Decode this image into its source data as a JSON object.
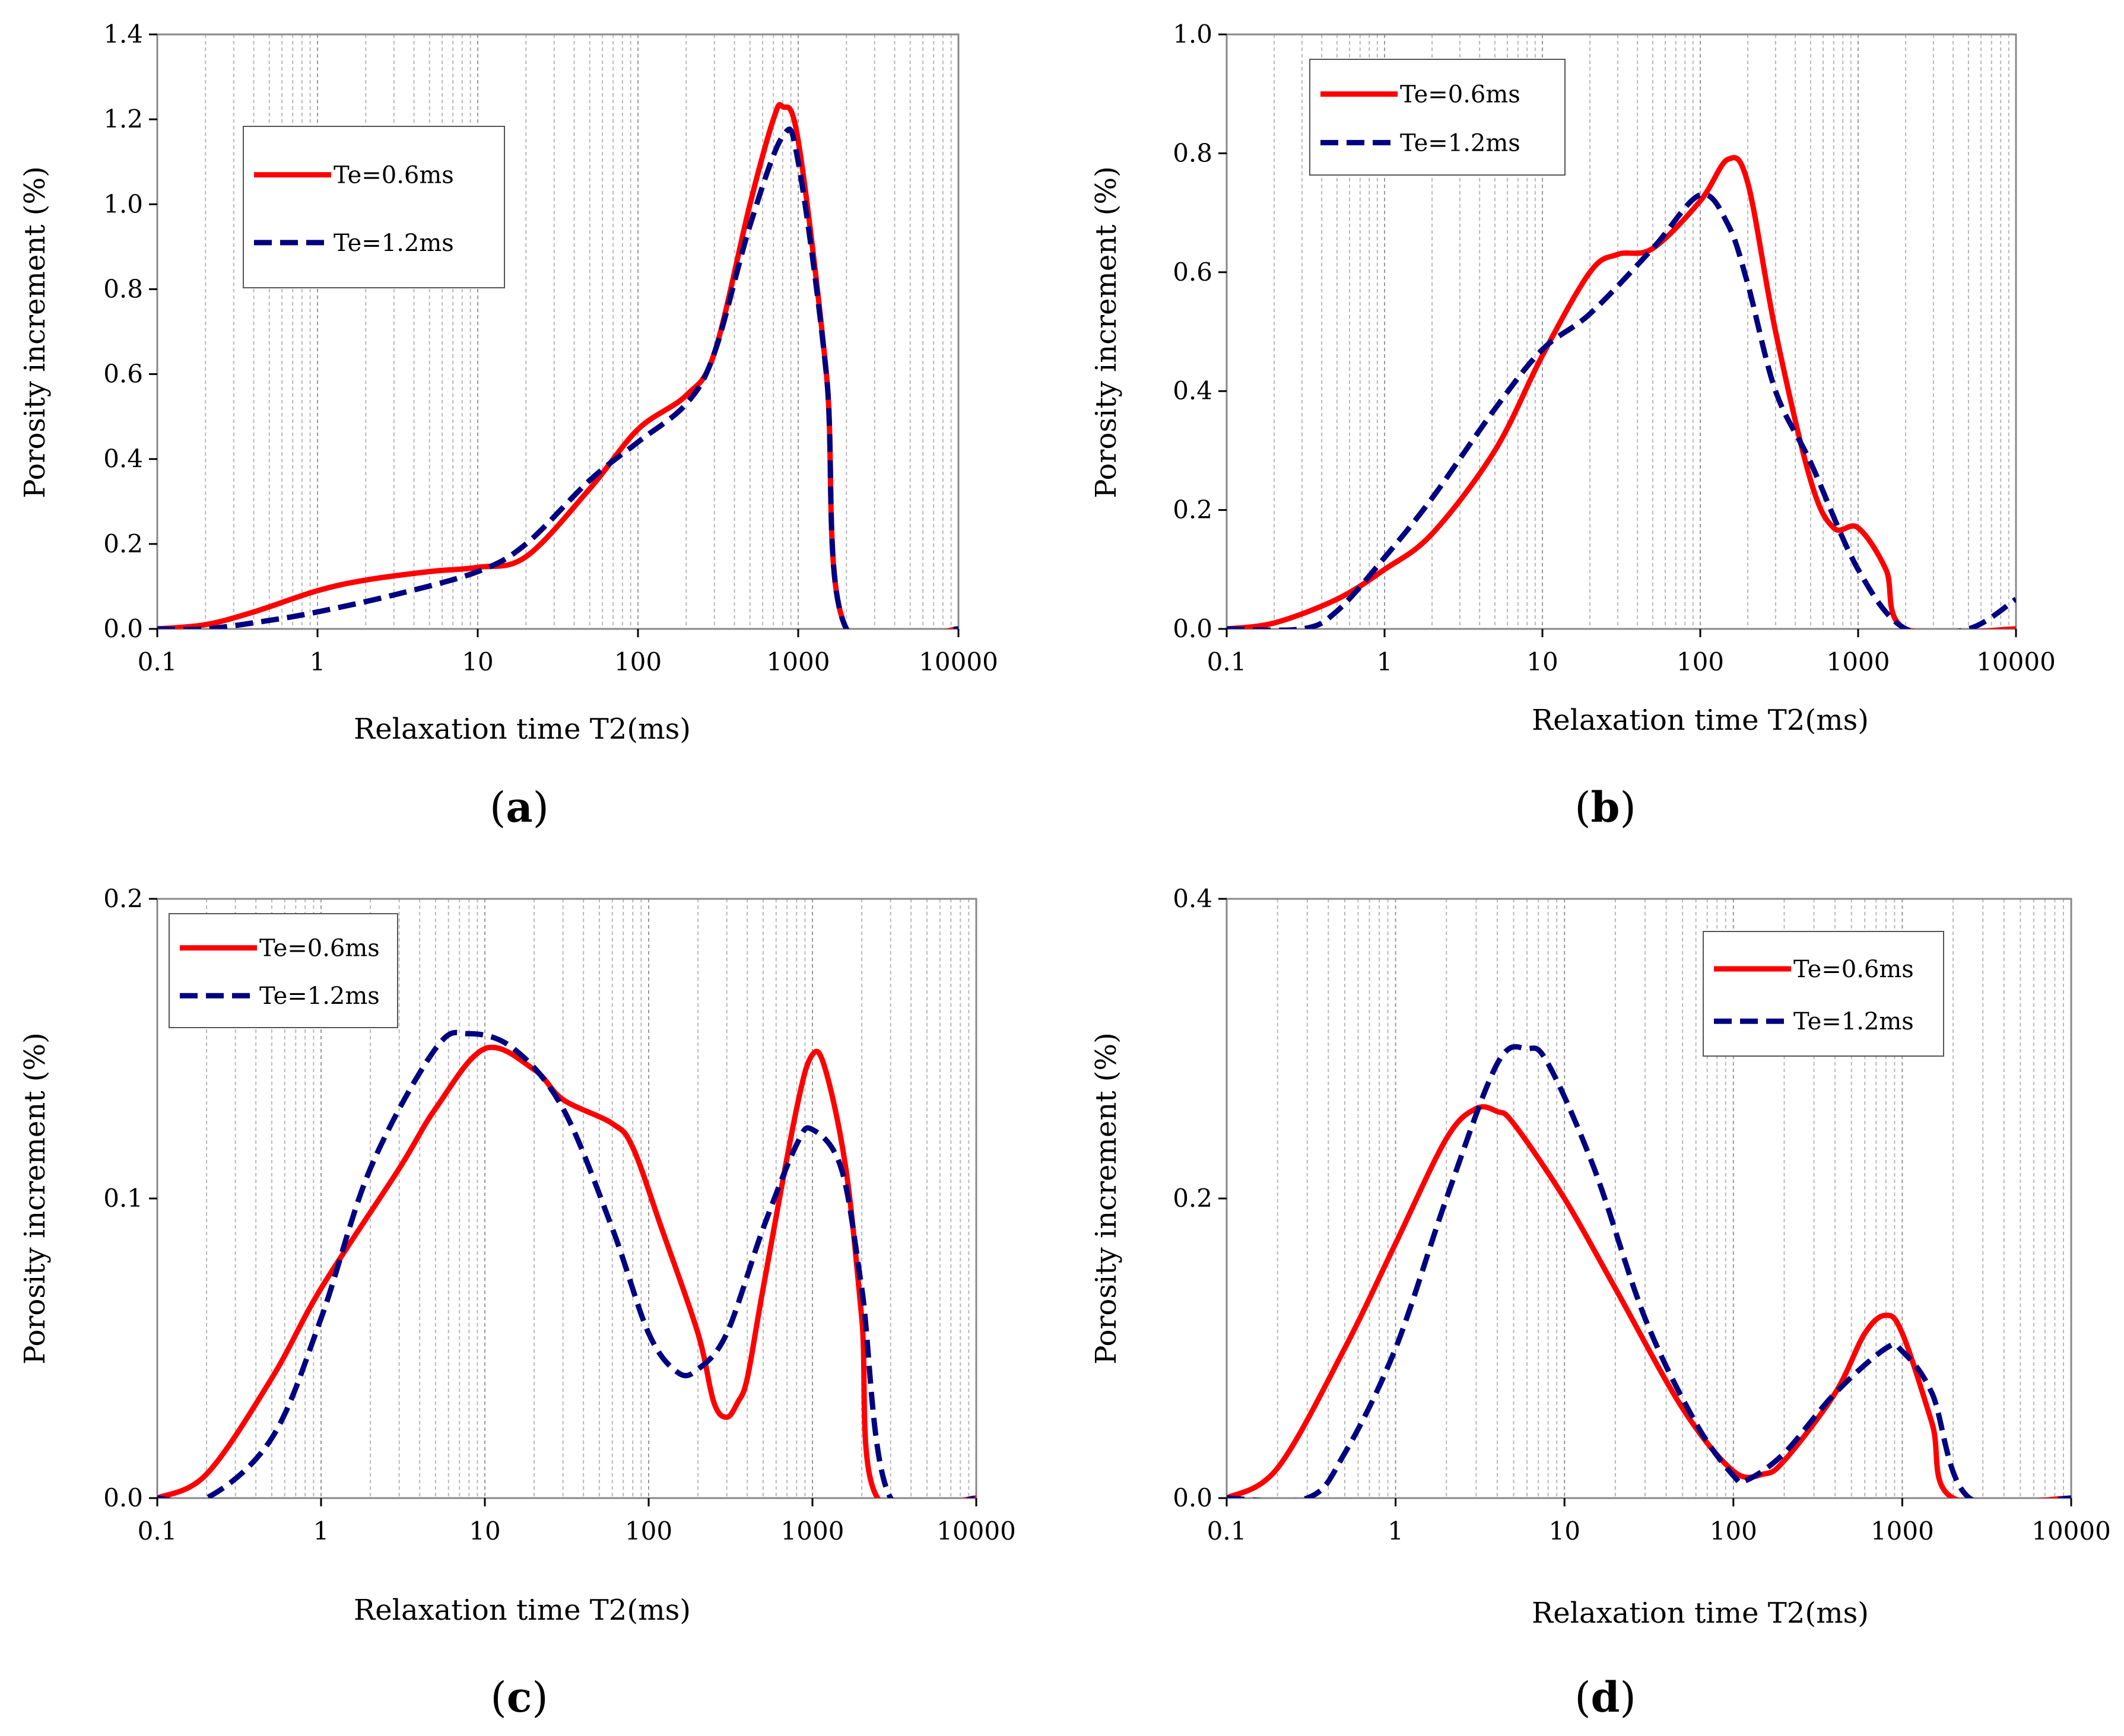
{
  "chart_data": [
    {
      "type": "line",
      "panel": "(a)",
      "panel_label": {
        "open": "(",
        "letter": "a",
        "close": ")"
      },
      "xscale": "log",
      "xlim": [
        0.1,
        10000
      ],
      "xticks": [
        "0.1",
        "1",
        "10",
        "100",
        "1000",
        "10000"
      ],
      "ylim": [
        0,
        1.4
      ],
      "yticks": [
        "0.0",
        "0.2",
        "0.4",
        "0.6",
        "0.8",
        "1.0",
        "1.2",
        "1.4"
      ],
      "xlabel": "Relaxation time T2(ms)",
      "ylabel": "Porosity increment (%)",
      "legend": "upper-left, boxed",
      "series": [
        {
          "name": "Te=0.6ms",
          "color": "#ff0000",
          "dash": "solid",
          "points": [
            [
              0.1,
              0
            ],
            [
              0.2,
              0.01
            ],
            [
              0.4,
              0.04
            ],
            [
              1,
              0.09
            ],
            [
              2,
              0.115
            ],
            [
              5,
              0.135
            ],
            [
              10,
              0.145
            ],
            [
              20,
              0.17
            ],
            [
              50,
              0.33
            ],
            [
              100,
              0.47
            ],
            [
              200,
              0.55
            ],
            [
              300,
              0.65
            ],
            [
              500,
              1.0
            ],
            [
              700,
              1.2
            ],
            [
              800,
              1.23
            ],
            [
              1000,
              1.15
            ],
            [
              1500,
              0.6
            ],
            [
              2000,
              0
            ],
            [
              10000,
              0
            ]
          ]
        },
        {
          "name": "Te=1.2ms",
          "color": "#000080",
          "dash": "dashed",
          "points": [
            [
              0.1,
              0
            ],
            [
              0.2,
              0
            ],
            [
              0.5,
              0.02
            ],
            [
              1,
              0.04
            ],
            [
              3,
              0.08
            ],
            [
              10,
              0.135
            ],
            [
              20,
              0.2
            ],
            [
              50,
              0.35
            ],
            [
              100,
              0.44
            ],
            [
              200,
              0.53
            ],
            [
              300,
              0.65
            ],
            [
              500,
              0.95
            ],
            [
              800,
              1.16
            ],
            [
              1000,
              1.1
            ],
            [
              1500,
              0.6
            ],
            [
              2000,
              0
            ],
            [
              10000,
              0
            ]
          ]
        }
      ]
    },
    {
      "type": "line",
      "panel": "(b)",
      "panel_label": {
        "open": "(",
        "letter": "b",
        "close": ")"
      },
      "xscale": "log",
      "xlim": [
        0.1,
        10000
      ],
      "xticks": [
        "0.1",
        "1",
        "10",
        "100",
        "1000",
        "10000"
      ],
      "ylim": [
        0,
        1.0
      ],
      "yticks": [
        "0.0",
        "0.2",
        "0.4",
        "0.6",
        "0.8",
        "1.0"
      ],
      "xlabel": "Relaxation time T2(ms)",
      "ylabel": "Porosity increment (%)",
      "legend": "upper-left, boxed",
      "series": [
        {
          "name": "Te=0.6ms",
          "color": "#ff0000",
          "dash": "solid",
          "points": [
            [
              0.1,
              0
            ],
            [
              0.2,
              0.01
            ],
            [
              0.5,
              0.05
            ],
            [
              1,
              0.1
            ],
            [
              2,
              0.16
            ],
            [
              5,
              0.3
            ],
            [
              10,
              0.46
            ],
            [
              20,
              0.6
            ],
            [
              30,
              0.63
            ],
            [
              50,
              0.64
            ],
            [
              100,
              0.72
            ],
            [
              150,
              0.79
            ],
            [
              200,
              0.75
            ],
            [
              300,
              0.5
            ],
            [
              500,
              0.25
            ],
            [
              700,
              0.17
            ],
            [
              1000,
              0.17
            ],
            [
              1500,
              0.1
            ],
            [
              2000,
              0
            ],
            [
              10000,
              0
            ]
          ]
        },
        {
          "name": "Te=1.2ms",
          "color": "#000080",
          "dash": "dashed",
          "points": [
            [
              0.1,
              0
            ],
            [
              0.3,
              0
            ],
            [
              0.5,
              0.03
            ],
            [
              1,
              0.12
            ],
            [
              2,
              0.22
            ],
            [
              5,
              0.37
            ],
            [
              10,
              0.47
            ],
            [
              20,
              0.53
            ],
            [
              50,
              0.64
            ],
            [
              100,
              0.73
            ],
            [
              150,
              0.68
            ],
            [
              200,
              0.58
            ],
            [
              300,
              0.4
            ],
            [
              500,
              0.28
            ],
            [
              1000,
              0.1
            ],
            [
              2000,
              0
            ],
            [
              5000,
              0
            ],
            [
              10000,
              0.05
            ]
          ]
        }
      ]
    },
    {
      "type": "line",
      "panel": "(c)",
      "panel_label": {
        "open": "(",
        "letter": "c",
        "close": ")"
      },
      "xscale": "log",
      "xlim": [
        0.1,
        10000
      ],
      "xticks": [
        "0.1",
        "1",
        "10",
        "100",
        "1000",
        "10000"
      ],
      "ylim": [
        0,
        0.2
      ],
      "yticks": [
        "0.0",
        "0.1",
        "0.2"
      ],
      "xlabel": "Relaxation time T2(ms)",
      "ylabel": "Porosity increment (%)",
      "legend": "upper-left, boxed",
      "series": [
        {
          "name": "Te=0.6ms",
          "color": "#ff0000",
          "dash": "solid",
          "points": [
            [
              0.1,
              0
            ],
            [
              0.2,
              0.008
            ],
            [
              0.5,
              0.04
            ],
            [
              1,
              0.07
            ],
            [
              3,
              0.11
            ],
            [
              5,
              0.13
            ],
            [
              10,
              0.15
            ],
            [
              20,
              0.143
            ],
            [
              30,
              0.133
            ],
            [
              60,
              0.125
            ],
            [
              80,
              0.117
            ],
            [
              120,
              0.09
            ],
            [
              200,
              0.055
            ],
            [
              250,
              0.032
            ],
            [
              300,
              0.027
            ],
            [
              350,
              0.032
            ],
            [
              400,
              0.04
            ],
            [
              500,
              0.07
            ],
            [
              800,
              0.13
            ],
            [
              1000,
              0.148
            ],
            [
              1200,
              0.143
            ],
            [
              1600,
              0.11
            ],
            [
              2000,
              0.06
            ],
            [
              2500,
              0
            ],
            [
              10000,
              0
            ]
          ]
        },
        {
          "name": "Te=1.2ms",
          "color": "#000080",
          "dash": "dashed",
          "points": [
            [
              0.1,
              0
            ],
            [
              0.2,
              0
            ],
            [
              0.5,
              0.02
            ],
            [
              1,
              0.06
            ],
            [
              2,
              0.11
            ],
            [
              5,
              0.15
            ],
            [
              8,
              0.155
            ],
            [
              15,
              0.15
            ],
            [
              30,
              0.13
            ],
            [
              60,
              0.09
            ],
            [
              100,
              0.055
            ],
            [
              150,
              0.042
            ],
            [
              200,
              0.043
            ],
            [
              300,
              0.055
            ],
            [
              500,
              0.09
            ],
            [
              800,
              0.118
            ],
            [
              1000,
              0.123
            ],
            [
              1500,
              0.11
            ],
            [
              2000,
              0.07
            ],
            [
              3000,
              0
            ],
            [
              10000,
              0
            ]
          ]
        }
      ]
    },
    {
      "type": "line",
      "panel": "(d)",
      "panel_label": {
        "open": "(",
        "letter": "d",
        "close": ")"
      },
      "xscale": "log",
      "xlim": [
        0.1,
        10000
      ],
      "xticks": [
        "0.1",
        "1",
        "10",
        "100",
        "1000",
        "10000"
      ],
      "ylim": [
        0,
        0.4
      ],
      "yticks": [
        "0.0",
        "0.2",
        "0.4"
      ],
      "xlabel": "Relaxation time T2(ms)",
      "ylabel": "Porosity increment (%)",
      "legend": "upper-right, boxed",
      "series": [
        {
          "name": "Te=0.6ms",
          "color": "#ff0000",
          "dash": "solid",
          "points": [
            [
              0.1,
              0
            ],
            [
              0.2,
              0.02
            ],
            [
              0.5,
              0.1
            ],
            [
              1,
              0.17
            ],
            [
              2,
              0.24
            ],
            [
              3,
              0.26
            ],
            [
              4,
              0.258
            ],
            [
              5,
              0.25
            ],
            [
              10,
              0.2
            ],
            [
              20,
              0.14
            ],
            [
              50,
              0.06
            ],
            [
              100,
              0.018
            ],
            [
              150,
              0.016
            ],
            [
              200,
              0.025
            ],
            [
              400,
              0.07
            ],
            [
              600,
              0.11
            ],
            [
              800,
              0.122
            ],
            [
              1000,
              0.11
            ],
            [
              1500,
              0.05
            ],
            [
              2000,
              0
            ],
            [
              10000,
              0
            ]
          ]
        },
        {
          "name": "Te=1.2ms",
          "color": "#000080",
          "dash": "dashed",
          "points": [
            [
              0.1,
              0
            ],
            [
              0.3,
              0
            ],
            [
              0.5,
              0.03
            ],
            [
              1,
              0.1
            ],
            [
              2,
              0.2
            ],
            [
              4,
              0.29
            ],
            [
              6,
              0.3
            ],
            [
              8,
              0.29
            ],
            [
              15,
              0.22
            ],
            [
              30,
              0.12
            ],
            [
              60,
              0.05
            ],
            [
              100,
              0.015
            ],
            [
              120,
              0.012
            ],
            [
              200,
              0.03
            ],
            [
              400,
              0.07
            ],
            [
              800,
              0.1
            ],
            [
              1000,
              0.098
            ],
            [
              1500,
              0.07
            ],
            [
              2500,
              0
            ],
            [
              10000,
              0
            ]
          ]
        }
      ]
    }
  ]
}
